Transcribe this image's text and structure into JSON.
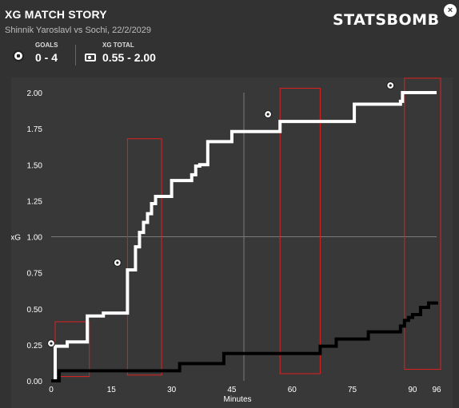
{
  "header": {
    "title": "XG MATCH STORY",
    "subtitle": "Shinnik Yaroslavl vs Sochi, 22/2/2029",
    "brand": "STATSBOMB",
    "close_label": "×"
  },
  "stats": {
    "goals_label": "GOALS",
    "goals_value": "0 - 4",
    "xg_label": "XG TOTAL",
    "xg_value": "0.55 - 2.00"
  },
  "colors": {
    "background": "#323232",
    "panel": "#383838",
    "home_line": "#000000",
    "away_line": "#ffffff",
    "highlight_box": "#e02020",
    "reference_line": "#7a7a7a"
  },
  "chart_data": {
    "type": "line",
    "xlabel": "Minutes",
    "ylabel": "xG",
    "xlim": [
      0,
      96
    ],
    "ylim": [
      0,
      2.0
    ],
    "x_ticks": [
      0,
      15,
      30,
      45,
      60,
      75,
      90,
      96
    ],
    "y_ticks": [
      "0.00",
      "0.25",
      "0.50",
      "0.75",
      "1.00",
      "1.25",
      "1.50",
      "1.75",
      "2.00"
    ],
    "reference_lines": {
      "x": 48,
      "y": 1.0
    },
    "series": [
      {
        "color": "#ffffff",
        "x": [
          0,
          1,
          4,
          9,
          13,
          19,
          21,
          22,
          23,
          24,
          25,
          26,
          30,
          35,
          36,
          37,
          39,
          45,
          57,
          75,
          75.5,
          87,
          87.5,
          96
        ],
        "y": [
          0.0,
          0.24,
          0.27,
          0.45,
          0.47,
          0.77,
          0.93,
          1.03,
          1.1,
          1.16,
          1.23,
          1.28,
          1.39,
          1.43,
          1.49,
          1.5,
          1.66,
          1.73,
          1.8,
          1.8,
          1.92,
          1.94,
          2.0,
          2.0
        ]
      },
      {
        "color": "#000000",
        "x": [
          0,
          2,
          32,
          43,
          67,
          71,
          79,
          87,
          88,
          89,
          90,
          92,
          94,
          96
        ],
        "y": [
          0.0,
          0.07,
          0.12,
          0.19,
          0.24,
          0.29,
          0.34,
          0.38,
          0.42,
          0.44,
          0.46,
          0.51,
          0.54,
          0.55
        ]
      }
    ],
    "goals": [
      {
        "minute": 0,
        "xg": 0.26
      },
      {
        "minute": 16.5,
        "xg": 0.82
      },
      {
        "minute": 54,
        "xg": 1.85
      },
      {
        "minute": 84.5,
        "xg": 2.05
      }
    ],
    "highlight_windows": [
      {
        "x_start": 1,
        "x_end": 9.5,
        "y_min": 0.03,
        "y_max": 0.41
      },
      {
        "x_start": 19,
        "x_end": 27.5,
        "y_min": 0.04,
        "y_max": 1.68
      },
      {
        "x_start": 57,
        "x_end": 67,
        "y_min": 0.05,
        "y_max": 2.03
      },
      {
        "x_start": 88,
        "x_end": 97,
        "y_min": 0.08,
        "y_max": 2.1
      }
    ]
  }
}
